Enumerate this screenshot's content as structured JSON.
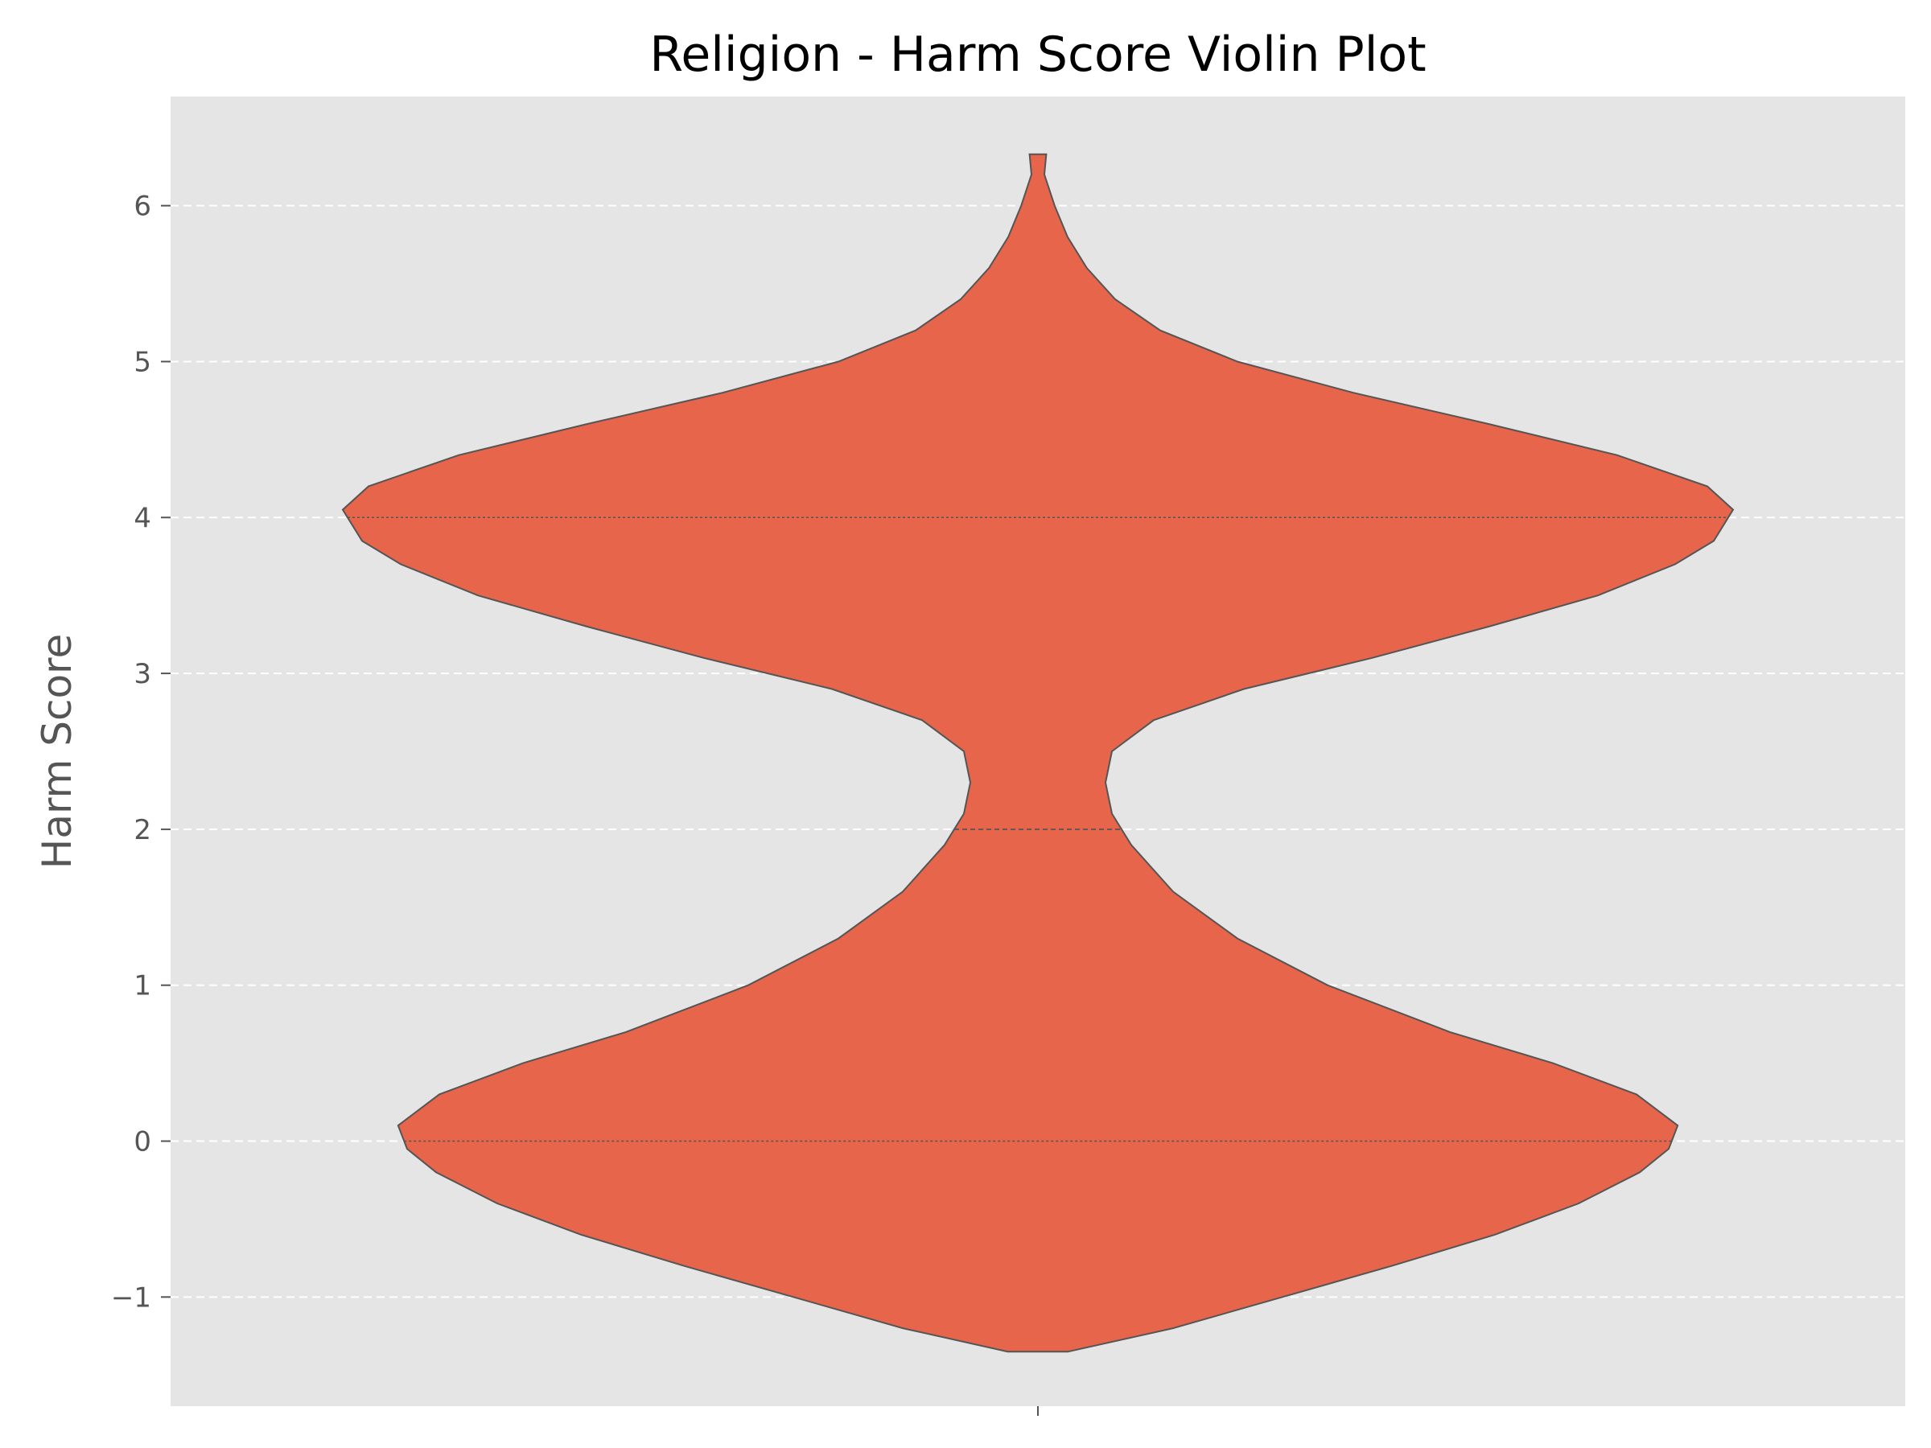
{
  "chart_data": {
    "type": "violin",
    "title": "Religion - Harm Score Violin Plot",
    "xlabel": "",
    "ylabel": "Harm Score",
    "ylim": [
      -1.7,
      6.7
    ],
    "yticks": [
      -1,
      0,
      1,
      2,
      3,
      4,
      5,
      6
    ],
    "ytick_labels": [
      "−1",
      "0",
      "1",
      "2",
      "3",
      "4",
      "5",
      "6"
    ],
    "categories": [
      ""
    ],
    "grid": {
      "axis": "y",
      "style": "dashed",
      "color": "#ffffff"
    },
    "background_color": "#e5e5e5",
    "violin_color": "#e6654b",
    "edge_color": "#555555",
    "violin": {
      "range": [
        -1.35,
        6.33
      ],
      "median": 2,
      "quartiles": [
        0,
        4
      ],
      "density": [
        {
          "y": -1.35,
          "w": 0.047
        },
        {
          "y": -1.2,
          "w": 0.21
        },
        {
          "y": -1.0,
          "w": 0.38
        },
        {
          "y": -0.8,
          "w": 0.55
        },
        {
          "y": -0.6,
          "w": 0.71
        },
        {
          "y": -0.4,
          "w": 0.84
        },
        {
          "y": -0.2,
          "w": 0.935
        },
        {
          "y": -0.05,
          "w": 0.98
        },
        {
          "y": 0.1,
          "w": 0.994
        },
        {
          "y": 0.3,
          "w": 0.93
        },
        {
          "y": 0.5,
          "w": 0.8
        },
        {
          "y": 0.7,
          "w": 0.64
        },
        {
          "y": 1.0,
          "w": 0.45
        },
        {
          "y": 1.3,
          "w": 0.31
        },
        {
          "y": 1.6,
          "w": 0.21
        },
        {
          "y": 1.9,
          "w": 0.145
        },
        {
          "y": 2.1,
          "w": 0.115
        },
        {
          "y": 2.3,
          "w": 0.105
        },
        {
          "y": 2.5,
          "w": 0.115
        },
        {
          "y": 2.7,
          "w": 0.18
        },
        {
          "y": 2.9,
          "w": 0.32
        },
        {
          "y": 3.1,
          "w": 0.52
        },
        {
          "y": 3.3,
          "w": 0.7
        },
        {
          "y": 3.5,
          "w": 0.87
        },
        {
          "y": 3.7,
          "w": 0.99
        },
        {
          "y": 3.85,
          "w": 1.05
        },
        {
          "y": 4.05,
          "w": 1.08
        },
        {
          "y": 4.2,
          "w": 1.04
        },
        {
          "y": 4.4,
          "w": 0.9
        },
        {
          "y": 4.6,
          "w": 0.7
        },
        {
          "y": 4.8,
          "w": 0.49
        },
        {
          "y": 5.0,
          "w": 0.31
        },
        {
          "y": 5.2,
          "w": 0.19
        },
        {
          "y": 5.4,
          "w": 0.12
        },
        {
          "y": 5.6,
          "w": 0.076
        },
        {
          "y": 5.8,
          "w": 0.046
        },
        {
          "y": 6.0,
          "w": 0.026
        },
        {
          "y": 6.2,
          "w": 0.01
        },
        {
          "y": 6.33,
          "w": 0.013
        }
      ]
    }
  }
}
